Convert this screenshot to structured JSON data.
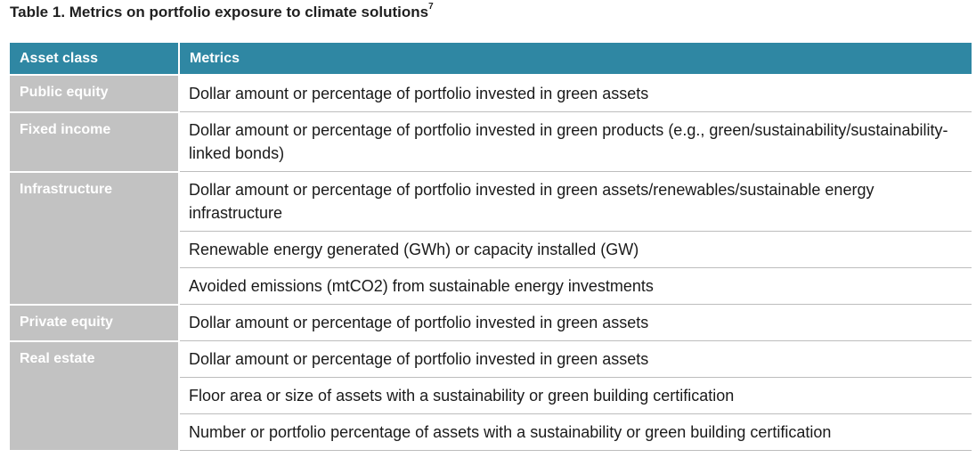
{
  "caption": {
    "title": "Table 1. Metrics on portfolio exposure to climate solutions",
    "footnote": "7"
  },
  "table": {
    "headers": [
      "Asset class",
      "Metrics"
    ],
    "rows": [
      {
        "asset": "Public equity",
        "metrics": [
          "Dollar amount or percentage of portfolio invested in green assets"
        ]
      },
      {
        "asset": "Fixed income",
        "metrics": [
          "Dollar amount or percentage of portfolio invested in green products (e.g., green/sustainability/sustainability-linked bonds)"
        ]
      },
      {
        "asset": "Infrastructure",
        "metrics": [
          "Dollar amount or percentage of portfolio invested in green assets/renewables/sustainable energy infrastructure",
          "Renewable energy generated (GWh) or capacity installed (GW)",
          "Avoided emissions (mtCO2) from sustainable energy investments"
        ]
      },
      {
        "asset": "Private equity",
        "metrics": [
          "Dollar amount or percentage of portfolio invested in green assets"
        ]
      },
      {
        "asset": "Real estate",
        "metrics": [
          "Dollar amount or percentage of portfolio invested in green assets",
          "Floor area or size of assets with a sustainability or green building certification",
          "Number or portfolio percentage of assets with a sustainability or green building certification"
        ]
      }
    ]
  },
  "colors": {
    "header_bg": "#2f87a3",
    "asset_bg": "#c2c2c2",
    "rule": "#bdbdbd"
  }
}
